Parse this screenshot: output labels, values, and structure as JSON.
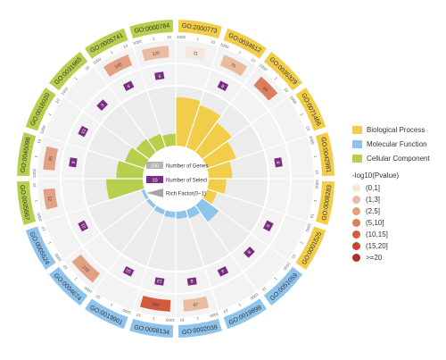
{
  "chart_data": {
    "type": "circular-go-enrichment",
    "colors": {
      "Biological Process": "#f2cd4a",
      "Molecular Function": "#8ec3ec",
      "Cellular Component": "#b6cf4c"
    },
    "terms": [
      {
        "id": "GO:2000773",
        "category": "Biological Process",
        "genes": 11,
        "select": null,
        "rich": 0.82,
        "pcls": 0
      },
      {
        "id": "GO:0034612",
        "category": "Biological Process",
        "genes": 75,
        "select": 8,
        "rich": 0.75,
        "pcls": 1
      },
      {
        "id": "GO:0035329",
        "category": "Biological Process",
        "genes": 34,
        "select": null,
        "rich": 0.62,
        "pcls": 3
      },
      {
        "id": "GO:0071466",
        "category": "Biological Process",
        "genes": null,
        "select": null,
        "rich": 0.52,
        "pcls": 5
      },
      {
        "id": "GO:0042981",
        "category": "Biological Process",
        "genes": null,
        "select": 8,
        "rich": 0.4,
        "pcls": 4
      },
      {
        "id": "GO:0008283",
        "category": "Biological Process",
        "genes": null,
        "select": null,
        "rich": 0.3,
        "pcls": 3
      },
      {
        "id": "GO:0001525",
        "category": "Biological Process",
        "genes": null,
        "select": 6,
        "rich": 0.18,
        "pcls": 2
      },
      {
        "id": "GO:0051059",
        "category": "Molecular Function",
        "genes": null,
        "select": 8,
        "rich": 0.35,
        "pcls": 4
      },
      {
        "id": "GO:0019899",
        "category": "Molecular Function",
        "genes": null,
        "select": 4,
        "rich": 0.15,
        "pcls": 5
      },
      {
        "id": "GO:0002039",
        "category": "Molecular Function",
        "genes": 67,
        "select": 8,
        "rich": 0.12,
        "pcls": 1
      },
      {
        "id": "GO:0008134",
        "category": "Molecular Function",
        "genes": 384,
        "select": 13,
        "rich": 0.1,
        "pcls": 4
      },
      {
        "id": "GO:0019901",
        "category": "Molecular Function",
        "genes": null,
        "select": 10,
        "rich": 0.08,
        "pcls": 3
      },
      {
        "id": "GO:0004674",
        "category": "Molecular Function",
        "genes": 278,
        "select": null,
        "rich": 0.06,
        "pcls": 2
      },
      {
        "id": "GO:0005524",
        "category": "Molecular Function",
        "genes": null,
        "select": 21,
        "rich": 0.05,
        "pcls": 1
      },
      {
        "id": "GO:0005667",
        "category": "Cellular Component",
        "genes": 12,
        "select": null,
        "rich": 0.62,
        "pcls": 2
      },
      {
        "id": "GO:0045098",
        "category": "Cellular Component",
        "genes": 35,
        "select": 9,
        "rich": 0.45,
        "pcls": 2
      },
      {
        "id": "GO:0016020",
        "category": "Cellular Component",
        "genes": null,
        "select": 13,
        "rich": 0.35,
        "pcls": 3
      },
      {
        "id": "GO:0031965",
        "category": "Cellular Component",
        "genes": null,
        "select": 3,
        "rich": 0.28,
        "pcls": 1
      },
      {
        "id": "GO:0005741",
        "category": "Cellular Component",
        "genes": 145,
        "select": 6,
        "rich": 0.24,
        "pcls": 2
      },
      {
        "id": "GO:0000784",
        "category": "Cellular Component",
        "genes": 120,
        "select": 6,
        "rich": 0.2,
        "pcls": 1
      }
    ],
    "tick_labels": [
      "1000",
      "1",
      "10"
    ],
    "inner_legend": {
      "genes_value": "100",
      "genes_label": "Number of Genes",
      "select_value": "10",
      "select_label": "Number of Select",
      "rich_label": "Rich Factor(0~1)"
    },
    "pvalue_title": "-log10(Pvalue)",
    "pvalue_bins": [
      "(0,1]",
      "(1,3]",
      "(2,5]",
      "(5,10]",
      "(10,15]",
      "(15,20]",
      ">=20"
    ],
    "pvalue_colors": [
      "#f6e6de",
      "#ebbba0",
      "#e3a183",
      "#dc7d5c",
      "#d45a3f",
      "#c8452f",
      "#a93227"
    ]
  }
}
